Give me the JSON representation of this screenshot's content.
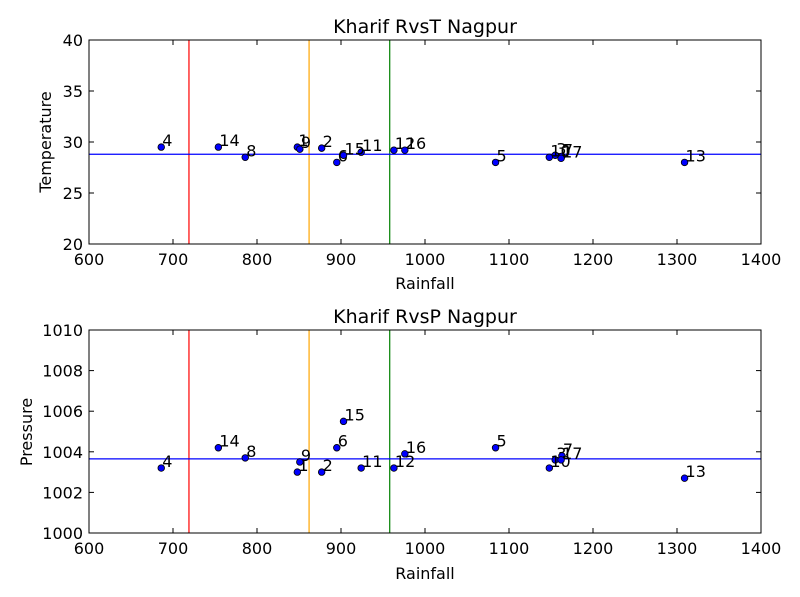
{
  "chart_data": [
    {
      "type": "scatter",
      "title": "Kharif RvsT Nagpur",
      "xlabel": "Rainfall",
      "ylabel": "Temperature",
      "xlim": [
        600,
        1400
      ],
      "ylim": [
        20,
        40
      ],
      "xticks": [
        "600",
        "700",
        "800",
        "900",
        "1000",
        "1100",
        "1200",
        "1300",
        "1400"
      ],
      "yticks": [
        "20",
        "25",
        "30",
        "35",
        "40"
      ],
      "hline": {
        "y": 28.8,
        "color": "#0000ff"
      },
      "vlines": [
        {
          "x": 719,
          "color": "#ff0000"
        },
        {
          "x": 862,
          "color": "#ffa500"
        },
        {
          "x": 958,
          "color": "#008000"
        }
      ],
      "points": [
        {
          "label": "1",
          "x": 848,
          "y": 29.5
        },
        {
          "label": "2",
          "x": 877,
          "y": 29.4
        },
        {
          "label": "3",
          "x": 1155,
          "y": 28.7
        },
        {
          "label": "4",
          "x": 686,
          "y": 29.5
        },
        {
          "label": "5",
          "x": 1084,
          "y": 28.0
        },
        {
          "label": "6",
          "x": 895,
          "y": 28.0
        },
        {
          "label": "7",
          "x": 1163,
          "y": 28.6
        },
        {
          "label": "8",
          "x": 786,
          "y": 28.5
        },
        {
          "label": "9",
          "x": 851,
          "y": 29.3
        },
        {
          "label": "10",
          "x": 1148,
          "y": 28.5
        },
        {
          "label": "11",
          "x": 924,
          "y": 29.0
        },
        {
          "label": "12",
          "x": 963,
          "y": 29.2
        },
        {
          "label": "13",
          "x": 1309,
          "y": 28.0
        },
        {
          "label": "14",
          "x": 754,
          "y": 29.5
        },
        {
          "label": "15",
          "x": 903,
          "y": 28.7
        },
        {
          "label": "16",
          "x": 976,
          "y": 29.2
        },
        {
          "label": "17",
          "x": 1162,
          "y": 28.4
        }
      ]
    },
    {
      "type": "scatter",
      "title": "Kharif RvsP Nagpur",
      "xlabel": "Rainfall",
      "ylabel": "Pressure",
      "xlim": [
        600,
        1400
      ],
      "ylim": [
        1000,
        1010
      ],
      "xticks": [
        "600",
        "700",
        "800",
        "900",
        "1000",
        "1100",
        "1200",
        "1300",
        "1400"
      ],
      "yticks": [
        "1000",
        "1002",
        "1004",
        "1006",
        "1008",
        "1010"
      ],
      "hline": {
        "y": 1003.65,
        "color": "#0000ff"
      },
      "vlines": [
        {
          "x": 719,
          "color": "#ff0000"
        },
        {
          "x": 862,
          "color": "#ffa500"
        },
        {
          "x": 958,
          "color": "#008000"
        }
      ],
      "points": [
        {
          "label": "1",
          "x": 848,
          "y": 1003.0
        },
        {
          "label": "2",
          "x": 877,
          "y": 1003.0
        },
        {
          "label": "3",
          "x": 1155,
          "y": 1003.6
        },
        {
          "label": "4",
          "x": 686,
          "y": 1003.2
        },
        {
          "label": "5",
          "x": 1084,
          "y": 1004.2
        },
        {
          "label": "6",
          "x": 895,
          "y": 1004.2
        },
        {
          "label": "7",
          "x": 1163,
          "y": 1003.8
        },
        {
          "label": "8",
          "x": 786,
          "y": 1003.7
        },
        {
          "label": "9",
          "x": 851,
          "y": 1003.5
        },
        {
          "label": "10",
          "x": 1148,
          "y": 1003.2
        },
        {
          "label": "11",
          "x": 924,
          "y": 1003.2
        },
        {
          "label": "12",
          "x": 963,
          "y": 1003.2
        },
        {
          "label": "13",
          "x": 1309,
          "y": 1002.7
        },
        {
          "label": "14",
          "x": 754,
          "y": 1004.2
        },
        {
          "label": "15",
          "x": 903,
          "y": 1005.5
        },
        {
          "label": "16",
          "x": 976,
          "y": 1003.9
        },
        {
          "label": "17",
          "x": 1162,
          "y": 1003.6
        }
      ]
    }
  ]
}
